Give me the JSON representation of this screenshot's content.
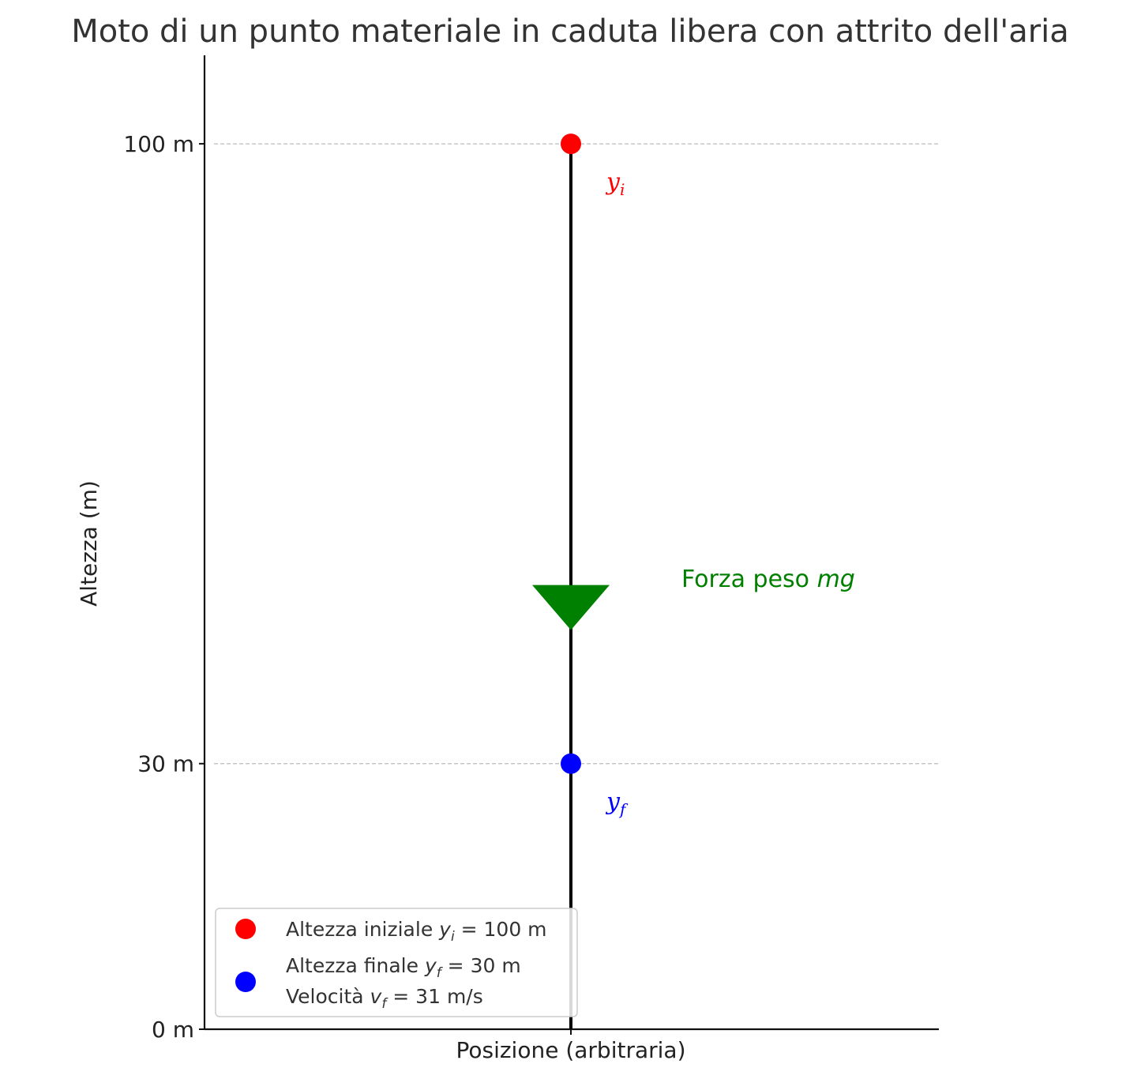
{
  "chart_data": {
    "type": "diagram",
    "title": "Moto di un punto materiale in caduta libera con attrito dell'aria",
    "xlabel": "Posizione (arbitraria)",
    "ylabel": "Altezza (m)",
    "ylim": [
      0,
      110
    ],
    "ytick_values": [
      0,
      30,
      100
    ],
    "ytick_labels": [
      "0 m",
      "30 m",
      "100 m"
    ],
    "grid_lines_at": [
      30,
      100
    ],
    "trajectory": {
      "from": 0,
      "to": 100,
      "color": "#000000"
    },
    "points": [
      {
        "label": "y_i",
        "label_main": "y",
        "label_sub": "i",
        "y": 100,
        "color": "#ff0000"
      },
      {
        "label": "y_f",
        "label_main": "y",
        "label_sub": "f",
        "y": 30,
        "color": "#0000ff"
      }
    ],
    "force": {
      "label": "Forza peso mg",
      "label_text": "Forza peso ",
      "label_symbol": "mg",
      "y": 47.5,
      "direction": "down",
      "color": "#008000"
    },
    "legend": {
      "placement": "lower-left",
      "entries": [
        {
          "color": "#ff0000",
          "lines": [
            "Altezza iniziale y_i = 100 m"
          ]
        },
        {
          "color": "#0000ff",
          "lines": [
            "Altezza finale y_f = 30 m",
            "Velocità v_f = 31 m/s"
          ]
        }
      ]
    }
  }
}
